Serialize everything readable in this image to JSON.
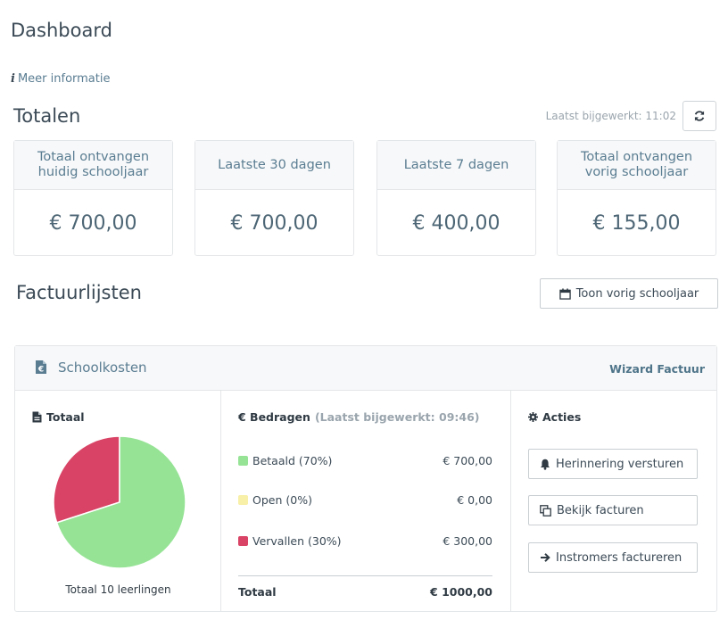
{
  "header": {
    "title": "Dashboard",
    "more_info": "Meer informatie"
  },
  "totals": {
    "title": "Totalen",
    "last_updated": "Laatst bijgewerkt: 11:02",
    "cards": [
      {
        "label": "Totaal ontvangen huidig schooljaar",
        "value": "€ 700,00"
      },
      {
        "label": "Laatste 30 dagen",
        "value": "€ 700,00"
      },
      {
        "label": "Laatste 7 dagen",
        "value": "€ 400,00"
      },
      {
        "label": "Totaal ontvangen vorig schooljaar",
        "value": "€ 155,00"
      }
    ]
  },
  "invoice_lists": {
    "title": "Factuurlijsten",
    "prev_year_button": "Toon vorig schooljaar"
  },
  "panel": {
    "title": "Schoolkosten",
    "wizard_link": "Wizard Factuur",
    "total_col": {
      "title": "Totaal",
      "caption": "Totaal 10 leerlingen"
    },
    "amounts_col": {
      "title": "€ Bedragen",
      "updated": "(Laatst bijgewerkt: 09:46)",
      "rows": [
        {
          "label": "Betaald (70%)",
          "amount": "€ 700,00",
          "color": "#96e396"
        },
        {
          "label": "Open (0%)",
          "amount": "€ 0,00",
          "color": "#f8f0a8"
        },
        {
          "label": "Vervallen (30%)",
          "amount": "€ 300,00",
          "color": "#d94466"
        }
      ],
      "total_label": "Totaal",
      "total_amount": "€ 1000,00"
    },
    "actions_col": {
      "title": "Acties",
      "buttons": [
        {
          "label": "Herinnering versturen",
          "icon": "bell-icon"
        },
        {
          "label": "Bekijk facturen",
          "icon": "copy-icon"
        },
        {
          "label": "Instromers factureren",
          "icon": "arrow-right-icon"
        }
      ]
    }
  },
  "chart_data": {
    "type": "pie",
    "categories": [
      "Betaald",
      "Open",
      "Vervallen"
    ],
    "values": [
      70,
      0,
      30
    ],
    "colors": [
      "#96e396",
      "#f8f0a8",
      "#d94466"
    ]
  }
}
